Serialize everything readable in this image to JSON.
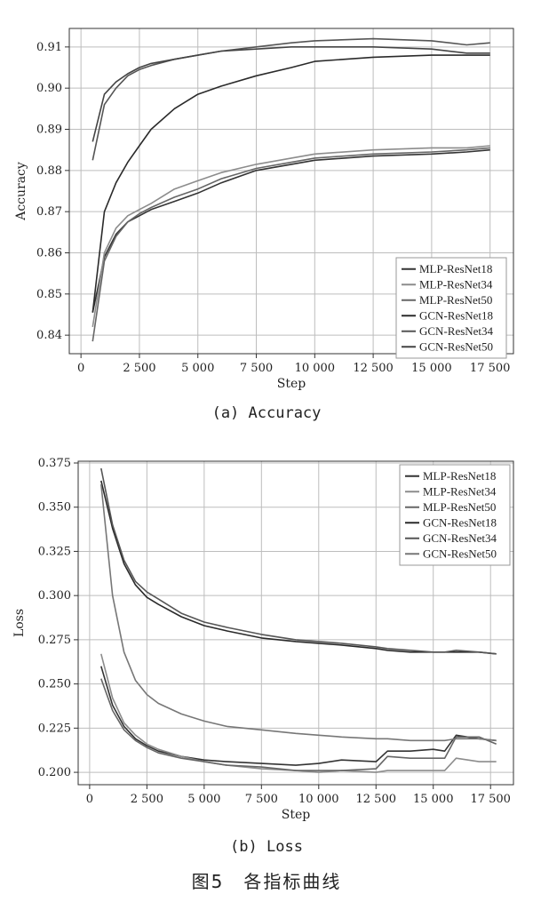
{
  "figure": {
    "title": "图5　各指标曲线",
    "caption_a": "(a) Accuracy",
    "caption_b": "(b) Loss"
  },
  "chart_data": [
    {
      "type": "line",
      "xlabel": "Step",
      "ylabel": "Accuracy",
      "xlim": [
        -500,
        18500
      ],
      "ylim": [
        0.8355,
        0.9145
      ],
      "xticks": [
        0,
        2500,
        5000,
        7500,
        10000,
        12500,
        15000,
        17500
      ],
      "xtick_labels": [
        "0",
        "2 500",
        "5 000",
        "7 500",
        "10 000",
        "12 500",
        "15 000",
        "17 500"
      ],
      "yticks": [
        0.84,
        0.85,
        0.86,
        0.87,
        0.88,
        0.89,
        0.9,
        0.91
      ],
      "ytick_labels": [
        "0.84",
        "0.85",
        "0.86",
        "0.87",
        "0.88",
        "0.89",
        "0.90",
        "0.91"
      ],
      "grid": true,
      "legend_position": "bottom-right",
      "x": [
        500,
        1000,
        1500,
        2000,
        2500,
        3000,
        4000,
        5000,
        6000,
        7500,
        9000,
        10000,
        12500,
        15000,
        16500,
        17500
      ],
      "series": [
        {
          "name": "MLP-ResNet18",
          "color": "#333333",
          "values": [
            0.8455,
            0.859,
            0.8645,
            0.8675,
            0.869,
            0.8705,
            0.8725,
            0.8745,
            0.877,
            0.88,
            0.8815,
            0.8825,
            0.8835,
            0.884,
            0.8845,
            0.885
          ]
        },
        {
          "name": "MLP-ResNet34",
          "color": "#8c8c8c",
          "values": [
            0.842,
            0.86,
            0.866,
            0.869,
            0.8705,
            0.872,
            0.8755,
            0.8775,
            0.8795,
            0.8815,
            0.883,
            0.884,
            0.885,
            0.8855,
            0.8855,
            0.886
          ]
        },
        {
          "name": "MLP-ResNet50",
          "color": "#666666",
          "values": [
            0.8385,
            0.858,
            0.864,
            0.8675,
            0.8695,
            0.871,
            0.8735,
            0.8755,
            0.878,
            0.8805,
            0.882,
            0.883,
            0.884,
            0.8845,
            0.885,
            0.8855
          ]
        },
        {
          "name": "GCN-ResNet18",
          "color": "#2a2a2a",
          "values": [
            0.8455,
            0.87,
            0.877,
            0.882,
            0.886,
            0.89,
            0.895,
            0.8985,
            0.9005,
            0.903,
            0.905,
            0.9065,
            0.9075,
            0.908,
            0.908,
            0.908
          ]
        },
        {
          "name": "GCN-ResNet34",
          "color": "#555555",
          "values": [
            0.8825,
            0.896,
            0.9,
            0.903,
            0.9045,
            0.9055,
            0.907,
            0.908,
            0.909,
            0.91,
            0.911,
            0.9115,
            0.912,
            0.9115,
            0.9105,
            0.911
          ]
        },
        {
          "name": "GCN-ResNet50",
          "color": "#444444",
          "values": [
            0.887,
            0.8985,
            0.9015,
            0.9035,
            0.905,
            0.906,
            0.907,
            0.908,
            0.909,
            0.9095,
            0.91,
            0.91,
            0.91,
            0.9095,
            0.9085,
            0.9085
          ]
        }
      ]
    },
    {
      "type": "line",
      "xlabel": "Step",
      "ylabel": "Loss",
      "xlim": [
        -500,
        18500
      ],
      "ylim": [
        0.193,
        0.376
      ],
      "xticks": [
        0,
        2500,
        5000,
        7500,
        10000,
        12500,
        15000,
        17500
      ],
      "xtick_labels": [
        "0",
        "2 500",
        "5 000",
        "7 500",
        "10 000",
        "12 500",
        "15 000",
        "17 500"
      ],
      "yticks": [
        0.2,
        0.225,
        0.25,
        0.275,
        0.3,
        0.325,
        0.35,
        0.375
      ],
      "ytick_labels": [
        "0.200",
        "0.225",
        "0.250",
        "0.275",
        "0.300",
        "0.325",
        "0.350",
        "0.375"
      ],
      "grid": true,
      "legend_position": "top-right",
      "x": [
        500,
        1000,
        1500,
        2000,
        2500,
        3000,
        4000,
        5000,
        6000,
        7500,
        9000,
        10000,
        11000,
        12500,
        13000,
        14000,
        15000,
        15500,
        16000,
        17000,
        17750
      ],
      "series": [
        {
          "name": "MLP-ResNet18",
          "color": "#333333",
          "values": [
            0.26,
            0.238,
            0.226,
            0.219,
            0.215,
            0.212,
            0.209,
            0.207,
            0.206,
            0.205,
            0.204,
            0.205,
            0.207,
            0.206,
            0.212,
            0.212,
            0.213,
            0.212,
            0.221,
            0.219,
            0.218
          ]
        },
        {
          "name": "MLP-ResNet34",
          "color": "#8c8c8c",
          "values": [
            0.267,
            0.242,
            0.228,
            0.221,
            0.216,
            0.213,
            0.209,
            0.206,
            0.204,
            0.202,
            0.201,
            0.2,
            0.201,
            0.2,
            0.201,
            0.201,
            0.201,
            0.201,
            0.208,
            0.206,
            0.206
          ]
        },
        {
          "name": "MLP-ResNet50",
          "color": "#666666",
          "values": [
            0.253,
            0.235,
            0.224,
            0.218,
            0.214,
            0.211,
            0.208,
            0.206,
            0.204,
            0.203,
            0.201,
            0.201,
            0.201,
            0.202,
            0.209,
            0.208,
            0.208,
            0.208,
            0.22,
            0.22,
            0.216
          ]
        },
        {
          "name": "GCN-ResNet18",
          "color": "#2a2a2a",
          "values": [
            0.365,
            0.338,
            0.318,
            0.306,
            0.299,
            0.295,
            0.288,
            0.283,
            0.28,
            0.276,
            0.274,
            0.273,
            0.272,
            0.27,
            0.269,
            0.268,
            0.268,
            0.268,
            0.268,
            0.268,
            0.267
          ]
        },
        {
          "name": "GCN-ResNet34",
          "color": "#555555",
          "values": [
            0.372,
            0.34,
            0.32,
            0.308,
            0.302,
            0.298,
            0.29,
            0.285,
            0.282,
            0.278,
            0.275,
            0.274,
            0.273,
            0.271,
            0.27,
            0.269,
            0.268,
            0.268,
            0.269,
            0.268,
            0.267
          ]
        },
        {
          "name": "GCN-ResNet50",
          "color": "#777777",
          "values": [
            0.363,
            0.3,
            0.268,
            0.252,
            0.244,
            0.239,
            0.233,
            0.229,
            0.226,
            0.224,
            0.222,
            0.221,
            0.22,
            0.219,
            0.219,
            0.218,
            0.218,
            0.218,
            0.219,
            0.219,
            0.218
          ]
        }
      ]
    }
  ]
}
